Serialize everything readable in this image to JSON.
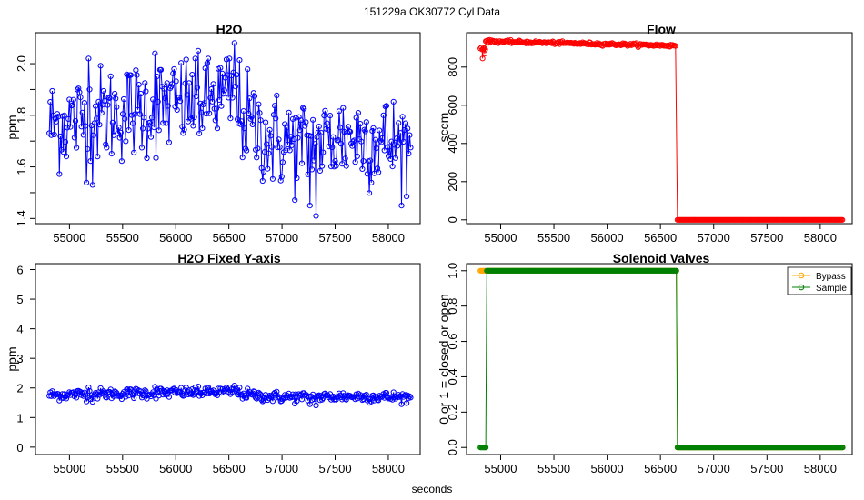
{
  "figure": {
    "header": "151229a   OK30772   Cyl Data",
    "footer_xlabel": "seconds"
  },
  "chart_data": [
    {
      "id": "h2o",
      "type": "line",
      "title": "H2O",
      "xlabel": "",
      "ylabel": "ppm",
      "xlim": [
        54680,
        58300
      ],
      "ylim": [
        1.38,
        2.12
      ],
      "xticks": [
        55000,
        55500,
        56000,
        56500,
        57000,
        57500,
        58000
      ],
      "yticks": [
        1.4,
        1.6,
        1.8,
        2.0
      ],
      "ytick_labels": [
        "1.4",
        "1.6",
        "1.8",
        "2.0"
      ],
      "grid": false,
      "marker": "open-circle",
      "series_color": "#0000ff",
      "n_points": 360,
      "x_range": [
        54810,
        58210
      ],
      "mean_profile": [
        [
          54810,
          1.76
        ],
        [
          55300,
          1.8
        ],
        [
          55800,
          1.83
        ],
        [
          56300,
          1.86
        ],
        [
          56550,
          1.88
        ],
        [
          56650,
          1.78
        ],
        [
          56900,
          1.7
        ],
        [
          57300,
          1.68
        ],
        [
          57600,
          1.72
        ],
        [
          58210,
          1.68
        ]
      ],
      "noise_sd": 0.095,
      "highlights": [
        [
          56550,
          2.08
        ],
        [
          55800,
          2.04
        ],
        [
          56210,
          2.05
        ],
        [
          55180,
          2.02
        ],
        [
          57320,
          1.41
        ],
        [
          57260,
          1.45
        ],
        [
          55220,
          1.53
        ]
      ]
    },
    {
      "id": "flow",
      "type": "line",
      "title": "Flow",
      "xlabel": "",
      "ylabel": "sccm",
      "xlim": [
        54680,
        58300
      ],
      "ylim": [
        -20,
        980
      ],
      "xticks": [
        55000,
        55500,
        56000,
        56500,
        57000,
        57500,
        58000
      ],
      "yticks": [
        0,
        200,
        400,
        600,
        800
      ],
      "ytick_labels": [
        "0",
        "200",
        "400",
        "600",
        "800"
      ],
      "grid": false,
      "marker": "open-circle",
      "series_color": "#ff0000",
      "segments": [
        {
          "x_start": 54810,
          "x_end": 54860,
          "value": 900,
          "noise": 10
        },
        {
          "x_start": 54860,
          "x_end": 56650,
          "start_value": 935,
          "end_value": 912,
          "noise": 6
        },
        {
          "x_start": 56660,
          "x_end": 58210,
          "value": 0,
          "noise": 0
        }
      ],
      "outliers": [
        [
          54830,
          845
        ],
        [
          54850,
          870
        ],
        [
          54880,
          940
        ]
      ]
    },
    {
      "id": "h2o-fixed",
      "type": "line",
      "title": "H2O Fixed Y-axis",
      "xlabel": "",
      "ylabel": "ppm",
      "xlim": [
        54680,
        58300
      ],
      "ylim": [
        -0.25,
        6.2
      ],
      "xticks": [
        55000,
        55500,
        56000,
        56500,
        57000,
        57500,
        58000
      ],
      "yticks": [
        0,
        1,
        2,
        3,
        4,
        5,
        6
      ],
      "ytick_labels": [
        "0",
        "1",
        "2",
        "3",
        "4",
        "5",
        "6"
      ],
      "grid": false,
      "marker": "open-circle",
      "series_color": "#0000ff",
      "same_data_as": "h2o"
    },
    {
      "id": "solenoid",
      "type": "line",
      "title": "Solenoid Valves",
      "xlabel": "",
      "ylabel": "0 or 1 = closed or open",
      "xlim": [
        54680,
        58300
      ],
      "ylim": [
        -0.04,
        1.04
      ],
      "xticks": [
        55000,
        55500,
        56000,
        56500,
        57000,
        57500,
        58000
      ],
      "yticks": [
        0.0,
        0.2,
        0.4,
        0.6,
        0.8,
        1.0
      ],
      "ytick_labels": [
        "0.0",
        "0.2",
        "0.4",
        "0.6",
        "0.8",
        "1.0"
      ],
      "grid": false,
      "marker": "open-circle",
      "legend": {
        "position": "top-right"
      },
      "series": [
        {
          "name": "Bypass",
          "color": "#ffa500",
          "steps": [
            [
              54810,
              1
            ],
            [
              56650,
              1
            ],
            [
              56660,
              0
            ],
            [
              58210,
              0
            ]
          ]
        },
        {
          "name": "Sample",
          "color": "#008000",
          "steps": [
            [
              54810,
              0
            ],
            [
              54860,
              0
            ],
            [
              54870,
              1
            ],
            [
              56650,
              1
            ],
            [
              56660,
              0
            ],
            [
              58210,
              0
            ]
          ]
        }
      ]
    }
  ]
}
